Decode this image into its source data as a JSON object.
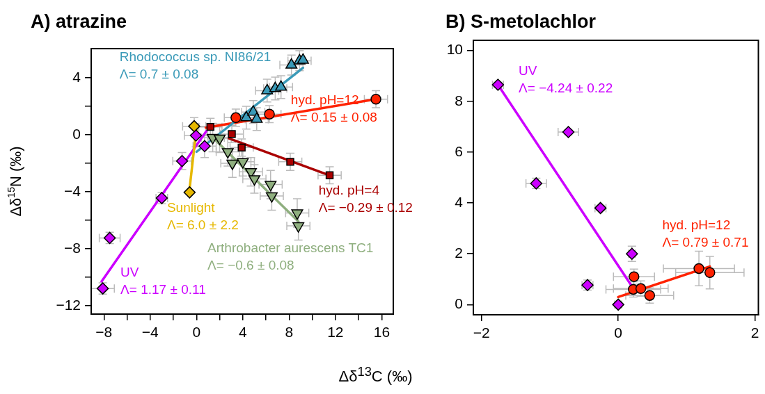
{
  "chart_data": [
    {
      "type": "scatter",
      "title": "A) atrazine",
      "xlabel": "Δδ$^{13}$C (‰)",
      "ylabel": "Δδ$^{15}$N (‰)",
      "xlim": [
        -9.1,
        17
      ],
      "ylim": [
        -12.6,
        6.05
      ],
      "xticks": [
        -8,
        {
          "value": -6,
          "label": null
        },
        -4,
        {
          "value": -2,
          "label": null
        },
        0,
        {
          "value": 2,
          "label": null
        },
        4,
        {
          "value": 6,
          "label": null
        },
        8,
        {
          "value": 10,
          "label": null
        },
        12,
        {
          "value": 14,
          "label": null
        },
        16
      ],
      "yticks": [
        -12,
        {
          "value": -10,
          "label": null
        },
        -8,
        {
          "value": -6,
          "label": null
        },
        -4,
        {
          "value": -2,
          "label": null
        },
        0,
        {
          "value": 2,
          "label": null
        },
        4
      ],
      "grid": false,
      "legend": false,
      "series": [
        {
          "name": "Rhodococcus sp. NI86/21",
          "marker": "triangle",
          "color": "#3a9ab8",
          "x": [
            4.3,
            4.9,
            5.2,
            6.1,
            6.8,
            7.3,
            8.2,
            8.9,
            9.2
          ],
          "values": [
            1.2,
            1.6,
            1.1,
            3.1,
            3.25,
            3.35,
            4.9,
            5.2,
            5.25
          ],
          "xerrors": [
            1,
            1,
            1,
            1,
            1,
            1,
            1,
            1,
            null
          ],
          "errors": [
            0.8,
            0.8,
            0.8,
            0.8,
            0.8,
            0.8,
            0.7,
            0.7,
            null
          ]
        },
        {
          "type": "line",
          "color": "#3a9ab8",
          "x": [
            0,
            9.2
          ],
          "values": [
            -1.2,
            4.7
          ]
        },
        {
          "name": "hyd. pH=12",
          "marker": "circle",
          "color": "#ff2200",
          "x": [
            3.4,
            6.3,
            15.5
          ],
          "values": [
            1.2,
            1.45,
            2.5
          ],
          "xerrors": [
            1,
            1,
            1
          ],
          "errors": [
            0.6,
            0.6,
            0.6
          ]
        },
        {
          "type": "line",
          "color": "#ff2200",
          "x": [
            0.8,
            15.5
          ],
          "values": [
            0.5,
            2.5
          ]
        },
        {
          "name": "hyd. pH=4",
          "marker": "square",
          "color": "#aa0000",
          "x": [
            1.2,
            3.05,
            3.9,
            8.1,
            11.5
          ],
          "values": [
            0.55,
            0.05,
            -0.9,
            -1.9,
            -2.85
          ],
          "xerrors": [
            1,
            1,
            1,
            1,
            1
          ],
          "errors": [
            0.6,
            0.6,
            0.6,
            0.6,
            0.6
          ]
        },
        {
          "type": "line",
          "color": "#aa0000",
          "x": [
            2.8,
            11.5
          ],
          "values": [
            -0.25,
            -2.85
          ]
        },
        {
          "name": "Sunlight",
          "marker": "diamond",
          "color": "#e6b800",
          "x": [
            -0.2,
            -0.6
          ],
          "values": [
            0.6,
            -4.05
          ],
          "xerrors": [
            1,
            null
          ],
          "errors": [
            0.6,
            null
          ]
        },
        {
          "type": "line",
          "color": "#e6b800",
          "x": [
            -0.6,
            0
          ],
          "values": [
            -3.8,
            0.5
          ]
        },
        {
          "name": "Arthrobacter aurescens TC1",
          "marker": "triangle-down",
          "color": "#8faf7f",
          "x": [
            1.4,
            2.0,
            2.7,
            3.1,
            4.0,
            4.7,
            5.0,
            6.4,
            6.5,
            8.7,
            8.8
          ],
          "values": [
            -0.2,
            -0.25,
            -1.2,
            -2.0,
            -1.9,
            -2.6,
            -3.1,
            -3.5,
            -4.3,
            -5.5,
            -6.4
          ],
          "xerrors": [
            1,
            1,
            1,
            1,
            1,
            1,
            1,
            1,
            1,
            1,
            1
          ],
          "errors": [
            1,
            1,
            1,
            1,
            1,
            1,
            1,
            1,
            1,
            1,
            1
          ]
        },
        {
          "type": "line",
          "color": "#8faf7f",
          "x": [
            1.6,
            8.8
          ],
          "values": [
            -0.35,
            -6.1
          ]
        },
        {
          "name": "UV",
          "marker": "diamond",
          "color": "#cc00ff",
          "x": [
            -8.1,
            -7.5,
            -3.0,
            -1.25,
            -0.05,
            0.7
          ],
          "values": [
            -10.8,
            -7.25,
            -4.45,
            -1.85,
            -0.05,
            -0.8
          ],
          "xerrors": [
            1,
            0.9,
            0.5,
            0.8,
            1,
            1
          ],
          "errors": [
            0.4,
            0.4,
            0.4,
            0.6,
            0.8,
            0.8
          ]
        },
        {
          "type": "line",
          "color": "#cc00ff",
          "x": [
            -8.2,
            0.85
          ],
          "values": [
            -10.3,
            0.25
          ]
        }
      ],
      "annotations": [
        "Λ= 0.7 ± 0.08",
        "Λ= 0.15 ± 0.08",
        "Λ= −0.29 ± 0.12",
        "Λ= 6.0 ± 2.2",
        "Λ= −0.6 ± 0.08",
        "Λ= 1.17 ± 0.11"
      ]
    },
    {
      "type": "scatter",
      "title": "B) S-metolachlor",
      "xlim": [
        -2.12,
        2.05
      ],
      "ylim": [
        -0.4,
        10.4
      ],
      "xticks": [
        -2,
        0,
        2
      ],
      "yticks": [
        0,
        2,
        4,
        6,
        8,
        10
      ],
      "grid": false,
      "legend": false,
      "series": [
        {
          "name": "UV",
          "marker": "diamond",
          "color": "#cc00ff",
          "x": [
            -1.76,
            -0.73,
            -1.2,
            -0.26,
            0.2,
            -0.45,
            0
          ],
          "values": [
            8.65,
            6.79,
            4.77,
            3.8,
            2.0,
            0.77,
            0
          ],
          "xerrors": [
            0.08,
            0.15,
            0.15,
            0.08,
            0.05,
            0.08,
            0.05
          ],
          "errors": [
            0.1,
            0.1,
            0.2,
            0.1,
            0.3,
            0.2,
            0.1
          ]
        },
        {
          "type": "line",
          "color": "#cc00ff",
          "x": [
            -1.76,
            0.21
          ],
          "values": [
            8.65,
            0.68
          ]
        },
        {
          "name": "hyd. pH=12",
          "marker": "circle",
          "color": "#ff2200",
          "x": [
            0.23,
            0.22,
            0.33,
            0.46,
            1.18,
            1.34
          ],
          "values": [
            1.1,
            0.6,
            0.63,
            0.36,
            1.42,
            1.26
          ],
          "xerrors": [
            0.3,
            0.4,
            0.4,
            0.35,
            0.52,
            0.5
          ],
          "errors": [
            0.3,
            0.3,
            0.3,
            0.3,
            0.68,
            0.64
          ]
        },
        {
          "type": "line",
          "color": "#ff2200",
          "x": [
            0,
            1.34
          ],
          "values": [
            0.3,
            1.5
          ]
        }
      ],
      "annotations": [
        "Λ= −4.24 ± 0.22",
        "Λ= 0.79 ± 0.71"
      ]
    }
  ]
}
